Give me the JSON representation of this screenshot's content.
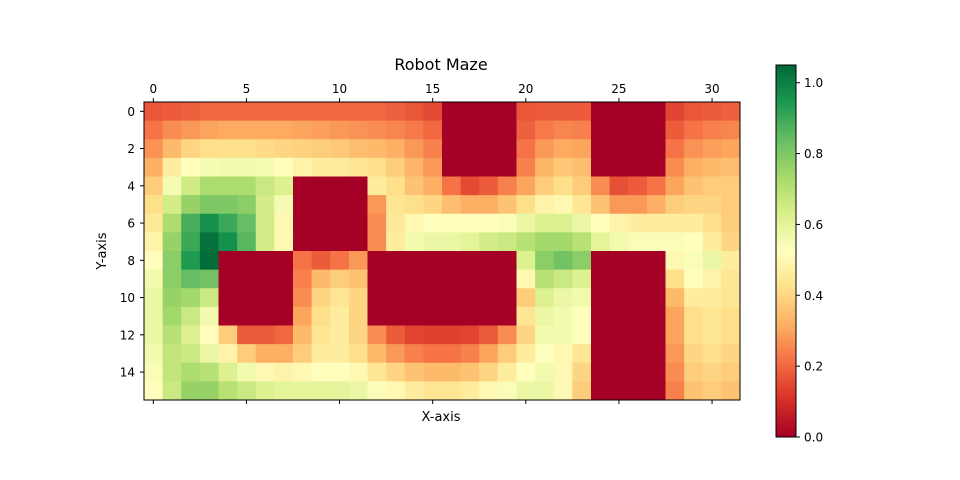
{
  "chart_data": {
    "type": "heatmap",
    "title": "Robot Maze",
    "xlabel": "X-axis",
    "ylabel": "Y-axis",
    "x_ticks": [
      0,
      5,
      10,
      15,
      20,
      25,
      30
    ],
    "y_ticks": [
      0,
      2,
      4,
      6,
      8,
      10,
      12,
      14
    ],
    "x_tick_position": "top",
    "colormap": "RdYlGn",
    "colorbar": {
      "ticks": [
        0.0,
        0.2,
        0.4,
        0.6,
        0.8,
        1.0
      ],
      "tick_labels": [
        "0.0",
        "0.2",
        "0.4",
        "0.6",
        "0.8",
        "1.0"
      ],
      "range": [
        0,
        1.05
      ]
    },
    "grid": false,
    "columns": 32,
    "rows": 16,
    "values": [
      [
        0.17,
        0.18,
        0.19,
        0.2,
        0.2,
        0.2,
        0.2,
        0.2,
        0.2,
        0.2,
        0.2,
        0.2,
        0.2,
        0.19,
        0.17,
        0.15,
        0,
        0,
        0,
        0,
        0.17,
        0.18,
        0.18,
        0.18,
        0,
        0,
        0,
        0,
        0.14,
        0.17,
        0.18,
        0.19
      ],
      [
        0.22,
        0.26,
        0.28,
        0.3,
        0.31,
        0.31,
        0.31,
        0.31,
        0.3,
        0.29,
        0.28,
        0.27,
        0.26,
        0.25,
        0.23,
        0.2,
        0,
        0,
        0,
        0,
        0.19,
        0.23,
        0.25,
        0.24,
        0,
        0,
        0,
        0,
        0.18,
        0.22,
        0.24,
        0.25
      ],
      [
        0.27,
        0.34,
        0.4,
        0.42,
        0.42,
        0.42,
        0.41,
        0.4,
        0.39,
        0.38,
        0.37,
        0.35,
        0.34,
        0.32,
        0.28,
        0.24,
        0,
        0,
        0,
        0,
        0.22,
        0.28,
        0.31,
        0.3,
        0,
        0,
        0,
        0,
        0.22,
        0.27,
        0.29,
        0.3
      ],
      [
        0.32,
        0.46,
        0.52,
        0.55,
        0.56,
        0.56,
        0.55,
        0.52,
        0.48,
        0.46,
        0.46,
        0.44,
        0.42,
        0.38,
        0.33,
        0.28,
        0,
        0,
        0,
        0,
        0.24,
        0.33,
        0.37,
        0.35,
        0,
        0,
        0,
        0,
        0.26,
        0.32,
        0.34,
        0.35
      ],
      [
        0.38,
        0.55,
        0.65,
        0.72,
        0.72,
        0.72,
        0.66,
        0.62,
        0,
        0,
        0,
        0,
        0.46,
        0.42,
        0.36,
        0.32,
        0.22,
        0.15,
        0.18,
        0.24,
        0.3,
        0.38,
        0.42,
        0.38,
        0.26,
        0.16,
        0.18,
        0.22,
        0.3,
        0.36,
        0.38,
        0.38
      ],
      [
        0.42,
        0.64,
        0.76,
        0.8,
        0.8,
        0.78,
        0.64,
        0.55,
        0,
        0,
        0,
        0,
        0.28,
        0.44,
        0.42,
        0.4,
        0.35,
        0.32,
        0.32,
        0.36,
        0.42,
        0.48,
        0.5,
        0.44,
        0.36,
        0.28,
        0.28,
        0.32,
        0.38,
        0.4,
        0.4,
        0.38
      ],
      [
        0.45,
        0.72,
        0.88,
        0.96,
        0.9,
        0.84,
        0.64,
        0.5,
        0,
        0,
        0,
        0,
        0.26,
        0.45,
        0.5,
        0.52,
        0.52,
        0.52,
        0.52,
        0.54,
        0.58,
        0.62,
        0.62,
        0.58,
        0.52,
        0.48,
        0.46,
        0.46,
        0.46,
        0.46,
        0.42,
        0.38
      ],
      [
        0.48,
        0.76,
        0.9,
        1.03,
        0.96,
        0.86,
        0.64,
        0.5,
        0,
        0,
        0,
        0,
        0.26,
        0.46,
        0.56,
        0.58,
        0.58,
        0.6,
        0.64,
        0.66,
        0.7,
        0.74,
        0.74,
        0.7,
        0.6,
        0.56,
        0.54,
        0.54,
        0.54,
        0.52,
        0.46,
        0.4
      ],
      [
        0.52,
        0.78,
        0.94,
        1.04,
        0,
        0,
        0,
        0,
        0.22,
        0.18,
        0.22,
        0.28,
        0,
        0,
        0,
        0,
        0,
        0,
        0,
        0,
        0.62,
        0.78,
        0.82,
        0.78,
        0,
        0,
        0,
        0,
        0.5,
        0.54,
        0.58,
        0.46
      ],
      [
        0.56,
        0.78,
        0.84,
        0.82,
        0,
        0,
        0,
        0,
        0.24,
        0.34,
        0.38,
        0.36,
        0,
        0,
        0,
        0,
        0,
        0,
        0,
        0,
        0.5,
        0.7,
        0.66,
        0.62,
        0,
        0,
        0,
        0,
        0.42,
        0.52,
        0.48,
        0.44
      ],
      [
        0.58,
        0.76,
        0.74,
        0.66,
        0,
        0,
        0,
        0,
        0.26,
        0.4,
        0.44,
        0.4,
        0,
        0,
        0,
        0,
        0,
        0,
        0,
        0,
        0.38,
        0.62,
        0.58,
        0.56,
        0,
        0,
        0,
        0,
        0.34,
        0.46,
        0.46,
        0.44
      ],
      [
        0.58,
        0.74,
        0.66,
        0.56,
        0,
        0,
        0,
        0,
        0.3,
        0.42,
        0.46,
        0.4,
        0,
        0,
        0,
        0,
        0,
        0,
        0,
        0,
        0.44,
        0.58,
        0.56,
        0.52,
        0,
        0,
        0,
        0,
        0.3,
        0.42,
        0.44,
        0.42
      ],
      [
        0.58,
        0.7,
        0.62,
        0.52,
        0.38,
        0.18,
        0.18,
        0.2,
        0.34,
        0.44,
        0.46,
        0.4,
        0.26,
        0.18,
        0.14,
        0.13,
        0.13,
        0.14,
        0.18,
        0.26,
        0.4,
        0.56,
        0.56,
        0.52,
        0,
        0,
        0,
        0,
        0.3,
        0.42,
        0.44,
        0.42
      ],
      [
        0.56,
        0.68,
        0.66,
        0.58,
        0.48,
        0.38,
        0.32,
        0.32,
        0.38,
        0.46,
        0.46,
        0.42,
        0.34,
        0.28,
        0.24,
        0.22,
        0.22,
        0.24,
        0.3,
        0.38,
        0.46,
        0.52,
        0.5,
        0.44,
        0,
        0,
        0,
        0,
        0.28,
        0.4,
        0.42,
        0.4
      ],
      [
        0.54,
        0.68,
        0.72,
        0.7,
        0.62,
        0.56,
        0.5,
        0.48,
        0.5,
        0.52,
        0.52,
        0.5,
        0.44,
        0.4,
        0.36,
        0.34,
        0.34,
        0.36,
        0.4,
        0.46,
        0.52,
        0.56,
        0.5,
        0.4,
        0,
        0,
        0,
        0,
        0.26,
        0.38,
        0.4,
        0.38
      ],
      [
        0.52,
        0.66,
        0.76,
        0.76,
        0.7,
        0.66,
        0.62,
        0.6,
        0.6,
        0.6,
        0.6,
        0.58,
        0.54,
        0.5,
        0.46,
        0.44,
        0.44,
        0.46,
        0.5,
        0.54,
        0.58,
        0.58,
        0.5,
        0.38,
        0,
        0,
        0,
        0,
        0.24,
        0.36,
        0.38,
        0.36
      ]
    ]
  }
}
